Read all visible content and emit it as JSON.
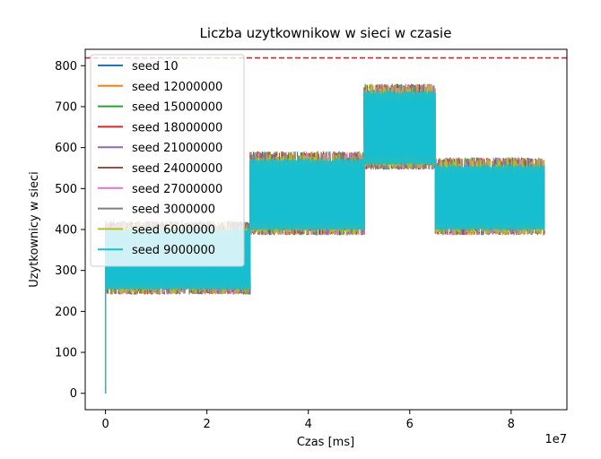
{
  "chart_data": {
    "type": "line",
    "title": "Liczba uzytkownikow w sieci w czasie",
    "xlabel": "Czas [ms]",
    "ylabel": "Uzytkownicy w sieci",
    "x_offset_label": "1e7",
    "x_ticks": [
      0,
      2,
      4,
      6,
      8
    ],
    "y_ticks": [
      0,
      100,
      200,
      300,
      400,
      500,
      600,
      700,
      800
    ],
    "xlim": [
      -0.4,
      9.1
    ],
    "ylim": [
      -40,
      840
    ],
    "grid": false,
    "legend_position": "upper-left",
    "reference_line": {
      "y": 819,
      "color": "#d62728",
      "style": "dashed"
    },
    "phases": [
      {
        "x_start": 0.0,
        "x_end": 2.85,
        "low": 255,
        "high": 400
      },
      {
        "x_start": 2.85,
        "x_end": 5.1,
        "low": 400,
        "high": 570
      },
      {
        "x_start": 5.1,
        "x_end": 6.5,
        "low": 560,
        "high": 735
      },
      {
        "x_start": 6.5,
        "x_end": 8.65,
        "low": 400,
        "high": 555
      }
    ],
    "series": [
      {
        "name": "seed 10",
        "color": "#1f77b4"
      },
      {
        "name": "seed 12000000",
        "color": "#ff7f0e"
      },
      {
        "name": "seed 15000000",
        "color": "#2ca02c"
      },
      {
        "name": "seed 18000000",
        "color": "#d62728"
      },
      {
        "name": "seed 21000000",
        "color": "#9467bd"
      },
      {
        "name": "seed 24000000",
        "color": "#8c564b"
      },
      {
        "name": "seed 27000000",
        "color": "#e377c2"
      },
      {
        "name": "seed 3000000",
        "color": "#7f7f7f"
      },
      {
        "name": "seed 6000000",
        "color": "#bcbd22"
      },
      {
        "name": "seed 9000000",
        "color": "#17becf"
      }
    ]
  }
}
